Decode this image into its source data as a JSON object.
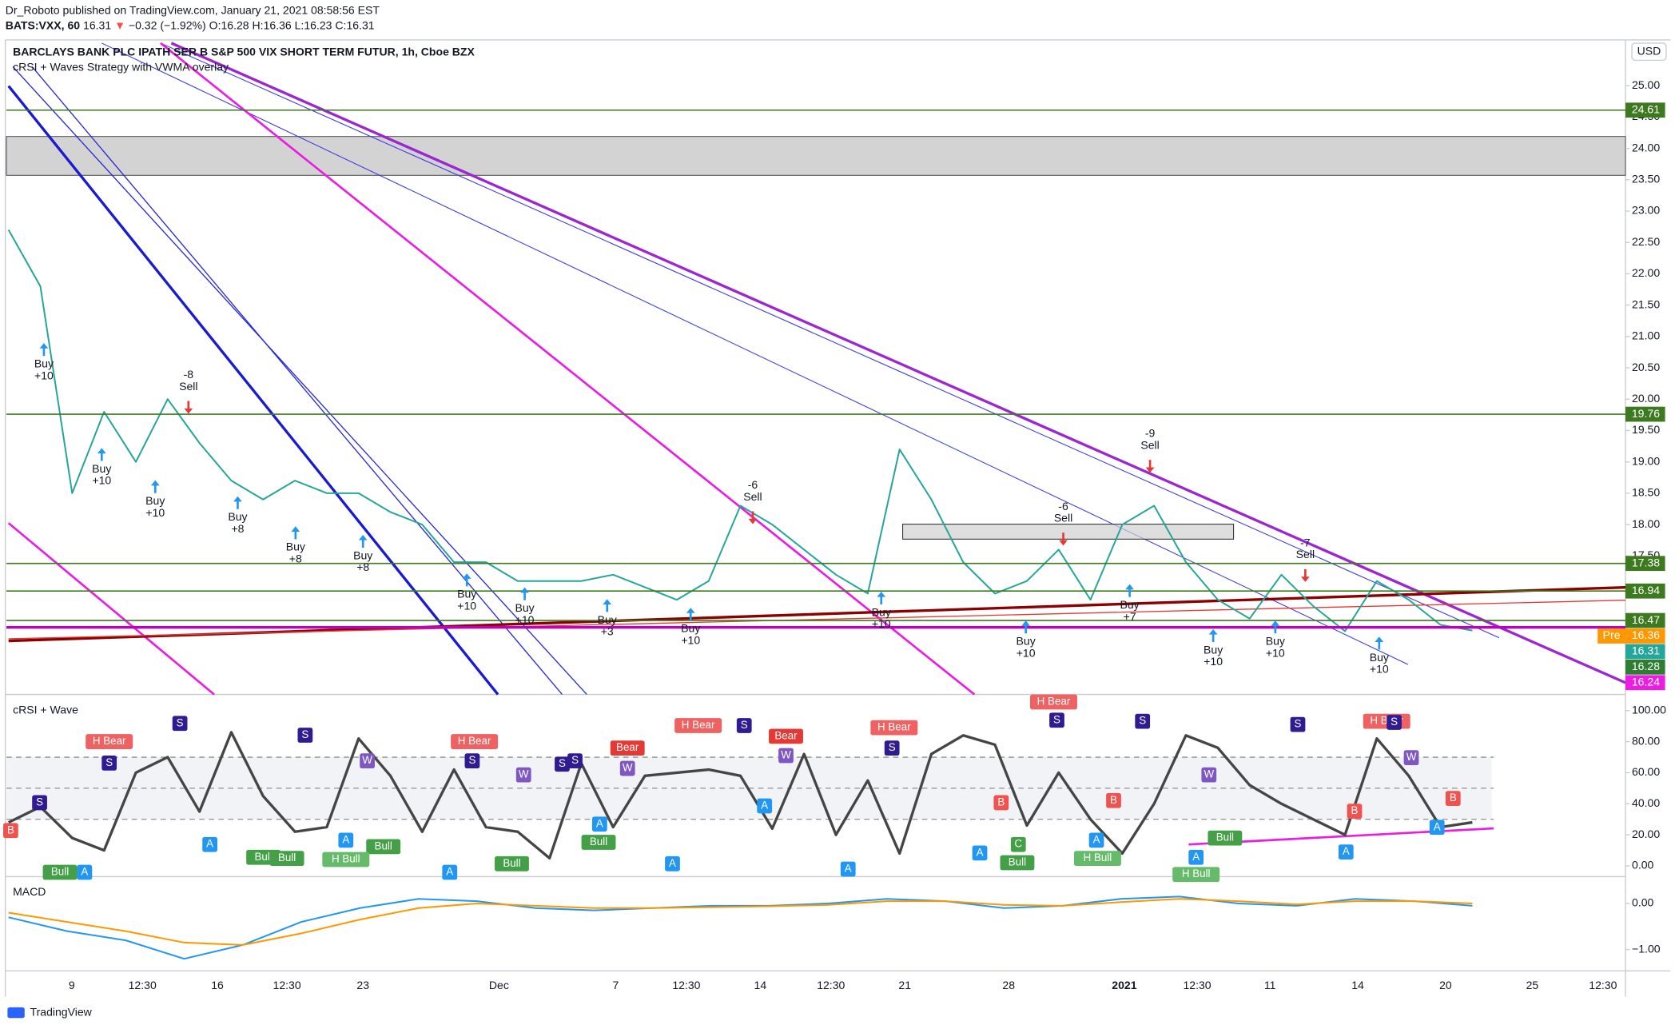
{
  "header": {
    "author_line": "Dr_Roboto published on TradingView.com, January 21, 2021 08:58:56 EST",
    "symbol": "BATS:VXX, 60",
    "last": "16.31",
    "arrow": "▼",
    "change": "−0.32 (−1.92%)",
    "ohlc": "O:16.28 H:16.36 L:16.23 C:16.31"
  },
  "footer": "TradingView",
  "x_labels": [
    "9",
    "12:30",
    "16",
    "12:30",
    "23",
    "Dec",
    "7",
    "12:30",
    "14",
    "12:30",
    "21",
    "28",
    "2021",
    "12:30",
    "11",
    "14",
    "20",
    "25",
    "12:30"
  ],
  "chart_data": [
    {
      "type": "line",
      "title": "BARCLAYS BANK PLC IPATH SER B S&P 500 VIX SHORT TERM FUTUR, 1h, Cboe BZX",
      "subtitle": "cRSI + Waves Strategy with VWMA overlay",
      "currency": "USD",
      "ylim": [
        15.29,
        25.73
      ],
      "yticks": [
        {
          "value": 25,
          "label": "25.00"
        },
        {
          "value": 24.5,
          "label": "24.50"
        },
        {
          "value": 24,
          "label": "24.00"
        },
        {
          "value": 23.5,
          "label": "23.50"
        },
        {
          "value": 23,
          "label": "23.00"
        },
        {
          "value": 22.5,
          "label": "22.50"
        },
        {
          "value": 22,
          "label": "22.00"
        },
        {
          "value": 21.5,
          "label": "21.50"
        },
        {
          "value": 21,
          "label": "21.00"
        },
        {
          "value": 20.5,
          "label": "20.50"
        },
        {
          "value": 20,
          "label": "20.00"
        },
        {
          "value": 19.5,
          "label": "19.50"
        },
        {
          "value": 19,
          "label": "19.00"
        },
        {
          "value": 18.5,
          "label": "18.50"
        },
        {
          "value": 18,
          "label": "18.00"
        },
        {
          "value": 17.5,
          "label": "17.50"
        }
      ],
      "zone": [
        23.57,
        24.19
      ],
      "series": [
        {
          "color": "#26a69a",
          "values": [
            22.7,
            21.8,
            18.5,
            19.8,
            19.0,
            20.0,
            19.3,
            18.7,
            18.4,
            18.7,
            18.5,
            18.5,
            18.2,
            18.0,
            17.4,
            17.4,
            17.1,
            17.1,
            17.1,
            17.2,
            17.0,
            16.8,
            17.1,
            18.3,
            18.0,
            17.6,
            17.2,
            16.9,
            19.2,
            18.4,
            17.4,
            16.9,
            17.1,
            17.6,
            16.8,
            18.0,
            18.3,
            17.4,
            16.8,
            16.5,
            17.2,
            16.7,
            16.3,
            17.1,
            16.8,
            16.4,
            16.31
          ]
        }
      ],
      "price_labels": [
        {
          "value": 24.61,
          "color": "#3d7a1f",
          "line": true
        },
        {
          "value": 19.76,
          "color": "#3d7a1f",
          "line": true
        },
        {
          "value": 17.38,
          "color": "#3d7a1f",
          "line": true
        },
        {
          "value": 16.94,
          "color": "#3d7a1f",
          "line": true
        },
        {
          "value": 16.47,
          "color": "#3d7a1f",
          "line": true
        },
        {
          "value": 16.36,
          "prefix": "Pre",
          "color": "#ff9800",
          "line_color": "#c000c0",
          "line": true
        },
        {
          "value": 16.31,
          "color": "#26a69a",
          "line": false
        },
        {
          "value": 16.28,
          "color": "#2e7d32",
          "line": false
        },
        {
          "value": 16.24,
          "color": "#e91ee0",
          "line": false
        }
      ],
      "signals": [
        {
          "lines": [
            "Buy",
            "+10"
          ],
          "dir": "up"
        },
        {
          "lines": [
            "Buy",
            "+10"
          ],
          "dir": "up"
        },
        {
          "lines": [
            "Buy",
            "+10"
          ],
          "dir": "up"
        },
        {
          "lines": [
            "Buy",
            "+8"
          ],
          "dir": "up"
        },
        {
          "lines": [
            "Buy",
            "+8"
          ],
          "dir": "up"
        },
        {
          "lines": [
            "Buy",
            "+8"
          ],
          "dir": "up"
        },
        {
          "lines": [
            "Buy",
            "+10"
          ],
          "dir": "up"
        },
        {
          "lines": [
            "Buy",
            "+10"
          ],
          "dir": "up"
        },
        {
          "lines": [
            "Buy",
            "+3"
          ],
          "dir": "up"
        },
        {
          "lines": [
            "Buy",
            "+10"
          ],
          "dir": "up"
        },
        {
          "lines": [
            "Buy",
            "+10"
          ],
          "dir": "up"
        },
        {
          "lines": [
            "Buy",
            "+10"
          ],
          "dir": "up"
        },
        {
          "lines": [
            "Buy",
            "+7"
          ],
          "dir": "up"
        },
        {
          "lines": [
            "Buy",
            "+10"
          ],
          "dir": "up"
        },
        {
          "lines": [
            "Buy",
            "+10"
          ],
          "dir": "up"
        },
        {
          "lines": [
            "Buy",
            "+10"
          ],
          "dir": "up"
        },
        {
          "lines": [
            "-8",
            "Sell"
          ],
          "dir": "down"
        },
        {
          "lines": [
            "-6",
            "Sell"
          ],
          "dir": "down"
        },
        {
          "lines": [
            "-6",
            "Sell"
          ],
          "dir": "down"
        },
        {
          "lines": [
            "-9",
            "Sell"
          ],
          "dir": "down"
        },
        {
          "lines": [
            "-7",
            "Sell"
          ],
          "dir": "down"
        }
      ]
    },
    {
      "type": "line",
      "title": "cRSI + Wave",
      "ylim": [
        -6.9,
        109
      ],
      "yticks": [
        {
          "value": 100,
          "label": "100.00"
        },
        {
          "value": 80,
          "label": "80.00"
        },
        {
          "value": 60,
          "label": "60.00"
        },
        {
          "value": 40,
          "label": "40.00"
        },
        {
          "value": 20,
          "label": "20.00"
        },
        {
          "value": 0,
          "label": "0.00"
        }
      ],
      "levels": [
        70,
        50,
        30
      ],
      "series": [
        {
          "color": "#454545",
          "values": [
            28,
            38,
            18,
            10,
            60,
            70,
            35,
            86,
            45,
            22,
            25,
            82,
            58,
            22,
            62,
            25,
            22,
            5,
            66,
            25,
            58,
            60,
            62,
            58,
            24,
            72,
            20,
            55,
            8,
            72,
            84,
            78,
            26,
            60,
            30,
            8,
            40,
            84,
            76,
            52,
            40,
            30,
            20,
            82,
            58,
            25,
            28
          ]
        }
      ],
      "tags": [
        {
          "text": "H Bear",
          "color": "#f06262"
        },
        {
          "text": "H Bear",
          "color": "#f06262"
        },
        {
          "text": "H Bear",
          "color": "#f06262"
        },
        {
          "text": "H Bear",
          "color": "#f06262"
        },
        {
          "text": "H Bear",
          "color": "#f06262"
        },
        {
          "text": "H Bear",
          "color": "#f06262"
        },
        {
          "text": "Bear",
          "color": "#e53935"
        },
        {
          "text": "Bear",
          "color": "#e53935"
        },
        {
          "text": "Bull",
          "color": "#43a047"
        },
        {
          "text": "Bull",
          "color": "#43a047"
        },
        {
          "text": "Bull",
          "color": "#43a047"
        },
        {
          "text": "Bull",
          "color": "#43a047"
        },
        {
          "text": "Bull",
          "color": "#43a047"
        },
        {
          "text": "Bull",
          "color": "#43a047"
        },
        {
          "text": "Bull",
          "color": "#43a047"
        },
        {
          "text": "Bull",
          "color": "#43a047"
        },
        {
          "text": "H Bull",
          "color": "#66bb6a"
        },
        {
          "text": "H Bull",
          "color": "#66bb6a"
        },
        {
          "text": "H Bull",
          "color": "#66bb6a"
        },
        {
          "text": "A",
          "color": "#2196f3"
        },
        {
          "text": "A",
          "color": "#2196f3"
        },
        {
          "text": "A",
          "color": "#2196f3"
        },
        {
          "text": "A",
          "color": "#2196f3"
        },
        {
          "text": "A",
          "color": "#2196f3"
        },
        {
          "text": "A",
          "color": "#2196f3"
        },
        {
          "text": "A",
          "color": "#2196f3"
        },
        {
          "text": "A",
          "color": "#2196f3"
        },
        {
          "text": "A",
          "color": "#2196f3"
        },
        {
          "text": "A",
          "color": "#2196f3"
        },
        {
          "text": "A",
          "color": "#2196f3"
        },
        {
          "text": "A",
          "color": "#2196f3"
        },
        {
          "text": "A",
          "color": "#2196f3"
        },
        {
          "text": "S",
          "color": "#311b92"
        },
        {
          "text": "S",
          "color": "#311b92"
        },
        {
          "text": "S",
          "color": "#311b92"
        },
        {
          "text": "S",
          "color": "#311b92"
        },
        {
          "text": "S",
          "color": "#311b92"
        },
        {
          "text": "S",
          "color": "#311b92"
        },
        {
          "text": "S",
          "color": "#311b92"
        },
        {
          "text": "S",
          "color": "#311b92"
        },
        {
          "text": "S",
          "color": "#311b92"
        },
        {
          "text": "S",
          "color": "#311b92"
        },
        {
          "text": "S",
          "color": "#311b92"
        },
        {
          "text": "S",
          "color": "#311b92"
        },
        {
          "text": "S",
          "color": "#311b92"
        },
        {
          "text": "W",
          "color": "#7e57c2"
        },
        {
          "text": "W",
          "color": "#7e57c2"
        },
        {
          "text": "W",
          "color": "#7e57c2"
        },
        {
          "text": "W",
          "color": "#7e57c2"
        },
        {
          "text": "W",
          "color": "#7e57c2"
        },
        {
          "text": "W",
          "color": "#7e57c2"
        },
        {
          "text": "B",
          "color": "#ef5350"
        },
        {
          "text": "B",
          "color": "#ef5350"
        },
        {
          "text": "B",
          "color": "#ef5350"
        },
        {
          "text": "B",
          "color": "#ef5350"
        },
        {
          "text": "B",
          "color": "#ef5350"
        },
        {
          "text": "C",
          "color": "#43a047"
        }
      ]
    },
    {
      "type": "line",
      "title": "MACD",
      "ylim": [
        -1.44,
        0.49
      ],
      "yticks": [
        {
          "value": 0,
          "label": "0.00"
        },
        {
          "value": -1,
          "label": "−1.00"
        }
      ],
      "series": [
        {
          "color": "#2196f3",
          "values": [
            -0.3,
            -0.6,
            -0.8,
            -1.2,
            -0.9,
            -0.4,
            -0.1,
            0.1,
            0.05,
            -0.1,
            -0.15,
            -0.1,
            -0.05,
            -0.05,
            0,
            0.1,
            0.05,
            -0.1,
            -0.05,
            0.1,
            0.15,
            0,
            -0.05,
            0.1,
            0.05,
            -0.05
          ]
        },
        {
          "color": "#ff9800",
          "values": [
            -0.2,
            -0.4,
            -0.6,
            -0.85,
            -0.9,
            -0.65,
            -0.35,
            -0.1,
            0,
            -0.05,
            -0.1,
            -0.1,
            -0.08,
            -0.06,
            -0.03,
            0.05,
            0.05,
            -0.03,
            -0.05,
            0.03,
            0.1,
            0.05,
            -0.02,
            0.05,
            0.05,
            0
          ]
        }
      ]
    }
  ]
}
